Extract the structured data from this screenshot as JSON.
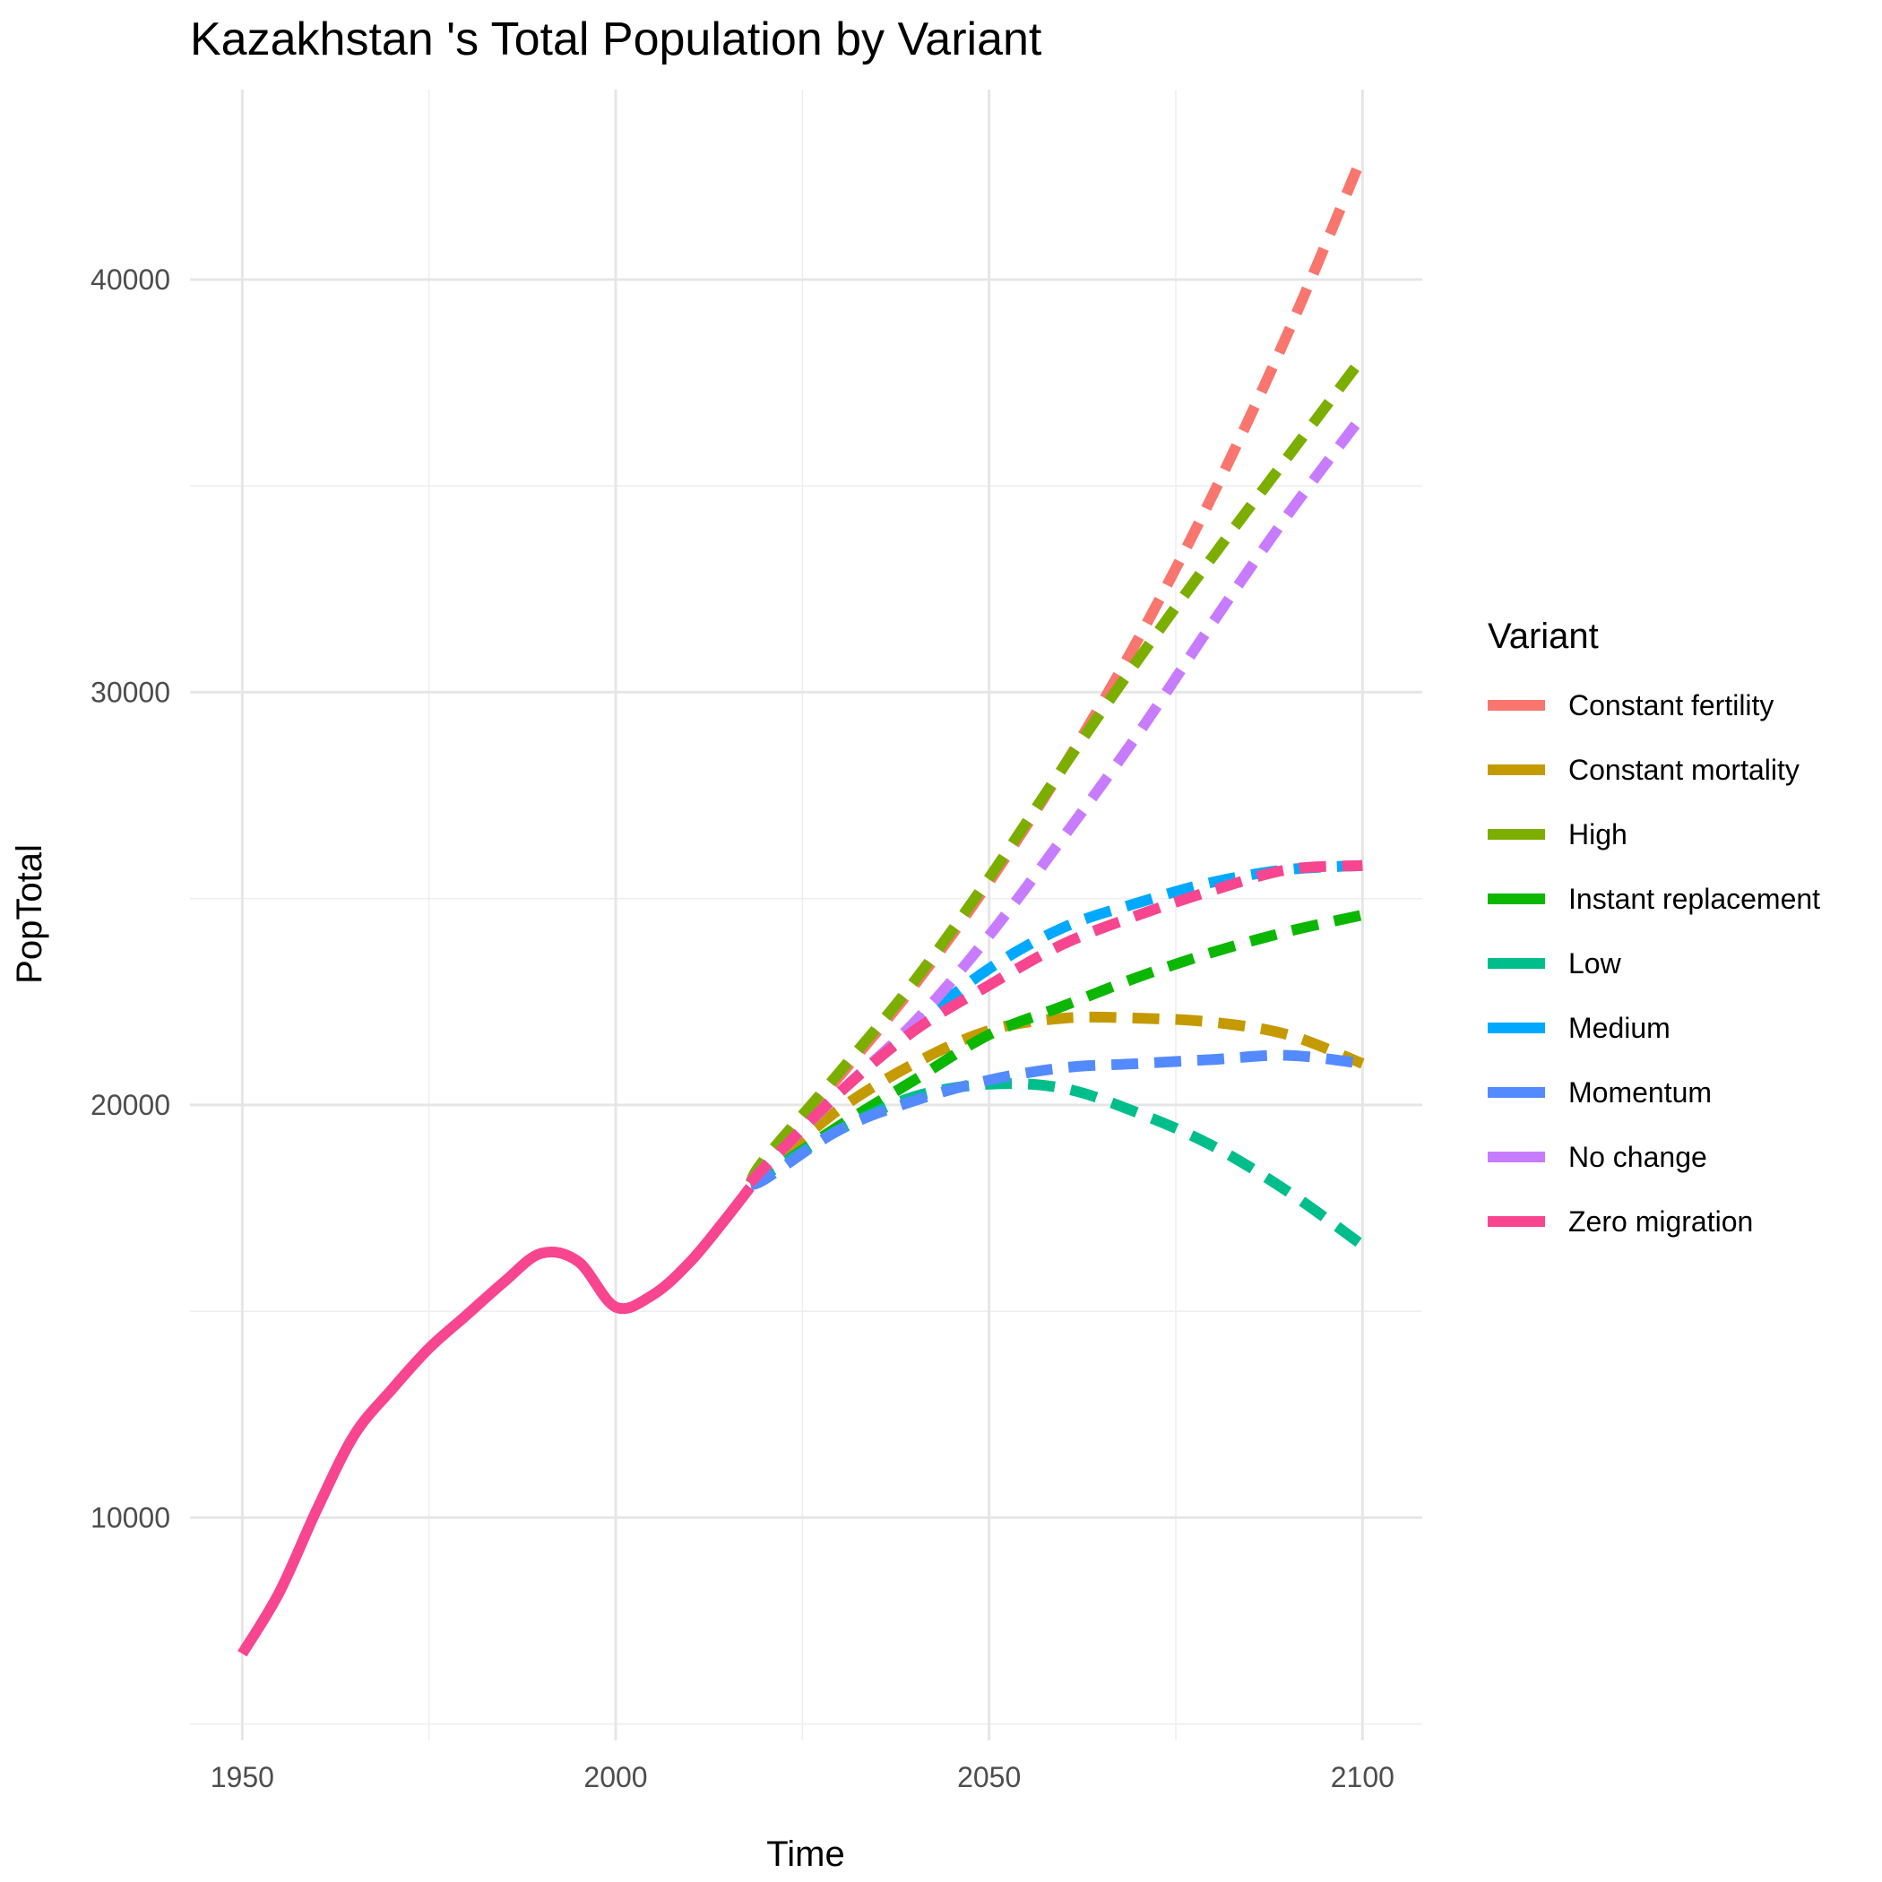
{
  "chart_data": {
    "type": "line",
    "title": "Kazakhstan 's Total Population by Variant",
    "xlabel": "Time",
    "ylabel": "PopTotal",
    "xlim": [
      1943,
      2108
    ],
    "ylim": [
      4600,
      44600
    ],
    "x_ticks": [
      1950,
      2000,
      2050,
      2100
    ],
    "y_ticks": [
      10000,
      20000,
      30000,
      40000
    ],
    "grid": true,
    "legend_title": "Variant",
    "legend_position": "right",
    "historical": {
      "color": "#F8458F",
      "x": [
        1950,
        1955,
        1960,
        1965,
        1970,
        1975,
        1980,
        1985,
        1990,
        1995,
        2000,
        2005,
        2010,
        2015,
        2018
      ],
      "y": [
        6700,
        8200,
        10200,
        12000,
        13100,
        14100,
        14900,
        15700,
        16400,
        16200,
        15100,
        15400,
        16200,
        17300,
        18000
      ]
    },
    "series": [
      {
        "name": "Constant fertility",
        "color": "#F8766D",
        "x": [
          2018,
          2020,
          2030,
          2040,
          2050,
          2060,
          2070,
          2080,
          2090,
          2100
        ],
        "y": [
          18100,
          18600,
          20700,
          22900,
          25400,
          28200,
          31300,
          34800,
          38700,
          43000
        ]
      },
      {
        "name": "Constant mortality",
        "color": "#C49A00",
        "x": [
          2018,
          2020,
          2030,
          2040,
          2050,
          2060,
          2070,
          2080,
          2090,
          2100
        ],
        "y": [
          18100,
          18400,
          19900,
          21000,
          21800,
          22100,
          22100,
          22000,
          21700,
          21000
        ]
      },
      {
        "name": "High",
        "color": "#7CAE00",
        "x": [
          2018,
          2020,
          2030,
          2040,
          2050,
          2060,
          2070,
          2080,
          2090,
          2100
        ],
        "y": [
          18100,
          18700,
          20800,
          23000,
          25500,
          28200,
          30800,
          33300,
          35700,
          38100
        ]
      },
      {
        "name": "Instant replacement",
        "color": "#0CB702",
        "x": [
          2018,
          2020,
          2030,
          2040,
          2050,
          2060,
          2070,
          2080,
          2090,
          2100
        ],
        "y": [
          18100,
          18300,
          19500,
          20600,
          21700,
          22400,
          23100,
          23700,
          24200,
          24600
        ]
      },
      {
        "name": "Low",
        "color": "#00BE8C",
        "x": [
          2018,
          2020,
          2030,
          2040,
          2050,
          2060,
          2070,
          2080,
          2090,
          2100
        ],
        "y": [
          18100,
          18300,
          19400,
          20200,
          20500,
          20400,
          19800,
          19000,
          17900,
          16600
        ]
      },
      {
        "name": "Medium",
        "color": "#00A9FF",
        "x": [
          2018,
          2020,
          2030,
          2040,
          2050,
          2060,
          2070,
          2080,
          2090,
          2100
        ],
        "y": [
          18100,
          18500,
          20300,
          21900,
          23300,
          24300,
          24900,
          25400,
          25700,
          25800
        ]
      },
      {
        "name": "Momentum",
        "color": "#548AFF",
        "x": [
          2018,
          2020,
          2030,
          2040,
          2050,
          2060,
          2070,
          2080,
          2090,
          2100
        ],
        "y": [
          18100,
          18200,
          19400,
          20100,
          20600,
          20900,
          21000,
          21100,
          21200,
          21000
        ]
      },
      {
        "name": "No change",
        "color": "#C77CFF",
        "x": [
          2018,
          2020,
          2030,
          2040,
          2050,
          2060,
          2070,
          2080,
          2090,
          2100
        ],
        "y": [
          18100,
          18500,
          20300,
          22000,
          24100,
          26500,
          29000,
          31700,
          34300,
          36700
        ]
      },
      {
        "name": "Zero migration",
        "color": "#F8458F",
        "x": [
          2018,
          2020,
          2030,
          2040,
          2050,
          2060,
          2070,
          2080,
          2090,
          2100
        ],
        "y": [
          18100,
          18500,
          20300,
          21800,
          22900,
          23900,
          24600,
          25200,
          25700,
          25800
        ]
      }
    ]
  }
}
